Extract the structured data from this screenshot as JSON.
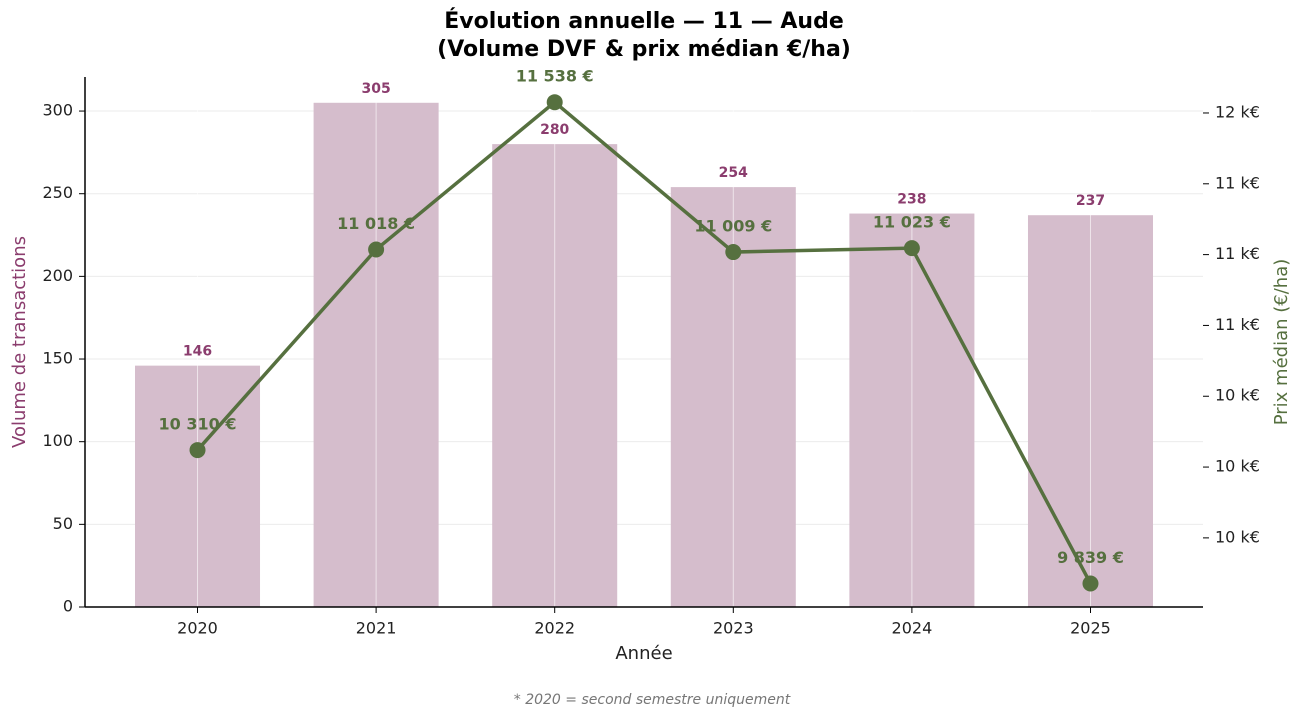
{
  "chart_data": {
    "type": "combo",
    "title": [
      "Évolution annuelle — 11 — Aude",
      "(Volume DVF & prix médian €/ha)"
    ],
    "x_label": "Année",
    "y_label": "Volume de transactions",
    "y2_label": "Prix médian (€/ha)",
    "footnote": "* 2020 = second semestre uniquement",
    "categories": [
      "2020",
      "2021",
      "2022",
      "2023",
      "2024",
      "2025"
    ],
    "series": [
      {
        "type": "bar",
        "color": "#d5bdcc",
        "label_color": "#8b3d6e",
        "values": [
          146,
          305,
          280,
          254,
          238,
          237
        ]
      },
      {
        "type": "line",
        "axis": "y2",
        "color": "#56703f",
        "values": [
          10310,
          11018,
          11538,
          11009,
          11023,
          9839
        ],
        "value_labels": [
          "10 310 €",
          "11 018 €",
          "11 538 €",
          "11 009 €",
          "11 023 €",
          "9 839 €"
        ]
      }
    ],
    "ylim": [
      0,
      320.6
    ],
    "yticks": [
      0,
      50,
      100,
      150,
      200,
      250,
      300
    ],
    "y2lim": [
      9756,
      11627
    ],
    "y2ticks": [
      {
        "value": 10000,
        "label": "10 k€"
      },
      {
        "value": 10250,
        "label": "10 k€"
      },
      {
        "value": 10500,
        "label": "10 k€"
      },
      {
        "value": 10750,
        "label": "11 k€"
      },
      {
        "value": 11000,
        "label": "11 k€"
      },
      {
        "value": 11250,
        "label": "11 k€"
      },
      {
        "value": 11500,
        "label": "12 k€"
      }
    ],
    "grid": true
  }
}
